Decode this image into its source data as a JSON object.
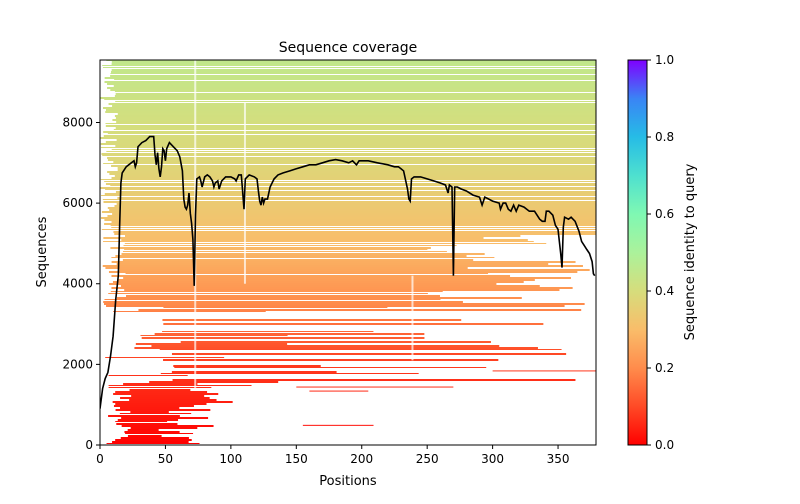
{
  "chart_data": {
    "type": "heatmap",
    "title": "Sequence coverage",
    "xlabel": "Positions",
    "ylabel": "Sequences",
    "xlim": [
      0,
      379
    ],
    "ylim": [
      0,
      9550
    ],
    "xticks": [
      0,
      50,
      100,
      150,
      200,
      250,
      300,
      350
    ],
    "yticks": [
      0,
      2000,
      4000,
      6000,
      8000
    ],
    "colorbar": {
      "label": "Sequence identity to query",
      "range": [
        0.0,
        1.0
      ],
      "ticks": [
        "0.0",
        "0.2",
        "0.4",
        "0.6",
        "0.8",
        "1.0"
      ],
      "colormap": "rainbow_r",
      "stops": [
        "#ff0000",
        "#ff4a26",
        "#ff8c4c",
        "#f9bd6a",
        "#d6dd7c",
        "#abf29b",
        "#7ff8b3",
        "#4ee0cf",
        "#26bce6",
        "#3a84f5",
        "#7f00ff"
      ]
    },
    "coverage_line": {
      "color": "#000000",
      "points": [
        [
          0,
          900
        ],
        [
          2,
          1400
        ],
        [
          4,
          1650
        ],
        [
          6,
          1800
        ],
        [
          8,
          2200
        ],
        [
          10,
          2700
        ],
        [
          12,
          3600
        ],
        [
          14,
          4200
        ],
        [
          15,
          5400
        ],
        [
          16,
          6500
        ],
        [
          17,
          6750
        ],
        [
          20,
          6900
        ],
        [
          24,
          7000
        ],
        [
          26,
          7050
        ],
        [
          27,
          6900
        ],
        [
          28,
          7000
        ],
        [
          29,
          7400
        ],
        [
          32,
          7500
        ],
        [
          35,
          7550
        ],
        [
          38,
          7650
        ],
        [
          41,
          7650
        ],
        [
          42,
          7200
        ],
        [
          43,
          6950
        ],
        [
          44,
          7250
        ],
        [
          45,
          6850
        ],
        [
          46,
          6650
        ],
        [
          47,
          6900
        ],
        [
          48,
          7350
        ],
        [
          49,
          7300
        ],
        [
          50,
          7050
        ],
        [
          51,
          7350
        ],
        [
          53,
          7500
        ],
        [
          56,
          7400
        ],
        [
          59,
          7300
        ],
        [
          61,
          7150
        ],
        [
          63,
          6800
        ],
        [
          64,
          6100
        ],
        [
          65,
          5900
        ],
        [
          66,
          5850
        ],
        [
          67,
          5950
        ],
        [
          68,
          6250
        ],
        [
          69,
          5750
        ],
        [
          70,
          5500
        ],
        [
          71,
          5100
        ],
        [
          72,
          3950
        ],
        [
          73,
          5700
        ],
        [
          74,
          6600
        ],
        [
          76,
          6650
        ],
        [
          77,
          6550
        ],
        [
          78,
          6400
        ],
        [
          80,
          6650
        ],
        [
          82,
          6700
        ],
        [
          84,
          6650
        ],
        [
          86,
          6550
        ],
        [
          87,
          6400
        ],
        [
          88,
          6500
        ],
        [
          90,
          6550
        ],
        [
          91,
          6350
        ],
        [
          93,
          6550
        ],
        [
          96,
          6650
        ],
        [
          100,
          6650
        ],
        [
          103,
          6600
        ],
        [
          104,
          6550
        ],
        [
          106,
          6700
        ],
        [
          108,
          6700
        ],
        [
          109,
          6300
        ],
        [
          110,
          5850
        ],
        [
          111,
          6600
        ],
        [
          114,
          6700
        ],
        [
          118,
          6650
        ],
        [
          120,
          6600
        ],
        [
          121,
          6300
        ],
        [
          122,
          6050
        ],
        [
          123,
          5950
        ],
        [
          124,
          6150
        ],
        [
          125,
          6000
        ],
        [
          126,
          6100
        ],
        [
          128,
          6100
        ],
        [
          130,
          6400
        ],
        [
          133,
          6600
        ],
        [
          136,
          6700
        ],
        [
          140,
          6750
        ],
        [
          145,
          6800
        ],
        [
          150,
          6850
        ],
        [
          155,
          6900
        ],
        [
          160,
          6950
        ],
        [
          165,
          6950
        ],
        [
          170,
          7000
        ],
        [
          175,
          7050
        ],
        [
          180,
          7080
        ],
        [
          185,
          7050
        ],
        [
          190,
          7000
        ],
        [
          193,
          7050
        ],
        [
          196,
          6950
        ],
        [
          198,
          7050
        ],
        [
          205,
          7050
        ],
        [
          212,
          7000
        ],
        [
          220,
          6950
        ],
        [
          225,
          6900
        ],
        [
          228,
          6900
        ],
        [
          230,
          6850
        ],
        [
          232,
          6800
        ],
        [
          235,
          6350
        ],
        [
          236,
          6100
        ],
        [
          237,
          6050
        ],
        [
          238,
          6600
        ],
        [
          240,
          6650
        ],
        [
          245,
          6650
        ],
        [
          250,
          6600
        ],
        [
          255,
          6550
        ],
        [
          260,
          6500
        ],
        [
          264,
          6450
        ],
        [
          266,
          6250
        ],
        [
          267,
          6450
        ],
        [
          269,
          6400
        ],
        [
          270,
          4200
        ],
        [
          271,
          6400
        ],
        [
          273,
          6400
        ],
        [
          276,
          6350
        ],
        [
          280,
          6300
        ],
        [
          285,
          6200
        ],
        [
          290,
          6150
        ],
        [
          292,
          5950
        ],
        [
          294,
          6150
        ],
        [
          297,
          6100
        ],
        [
          300,
          6050
        ],
        [
          305,
          6000
        ],
        [
          306,
          5850
        ],
        [
          308,
          6000
        ],
        [
          310,
          6000
        ],
        [
          312,
          5850
        ],
        [
          314,
          5800
        ],
        [
          316,
          5950
        ],
        [
          318,
          5800
        ],
        [
          320,
          5950
        ],
        [
          324,
          5900
        ],
        [
          328,
          5800
        ],
        [
          332,
          5800
        ],
        [
          336,
          5600
        ],
        [
          338,
          5550
        ],
        [
          340,
          5550
        ],
        [
          341,
          5800
        ],
        [
          343,
          5800
        ],
        [
          346,
          5700
        ],
        [
          348,
          5450
        ],
        [
          350,
          5350
        ],
        [
          352,
          4750
        ],
        [
          353,
          4400
        ],
        [
          354,
          5400
        ],
        [
          355,
          5650
        ],
        [
          358,
          5600
        ],
        [
          360,
          5650
        ],
        [
          363,
          5550
        ],
        [
          366,
          5300
        ],
        [
          368,
          5050
        ],
        [
          370,
          4950
        ],
        [
          372,
          4850
        ],
        [
          374,
          4750
        ],
        [
          376,
          4550
        ],
        [
          377,
          4250
        ],
        [
          378,
          4200
        ]
      ]
    },
    "alignment_bands": {
      "note": "Horizontal alignment segments colored by identity; identity rises with sequence index",
      "identity_by_sequence": [
        [
          0,
          0.0
        ],
        [
          2000,
          0.08
        ],
        [
          3500,
          0.2
        ],
        [
          5000,
          0.3
        ],
        [
          7000,
          0.38
        ],
        [
          9550,
          0.45
        ]
      ]
    }
  }
}
